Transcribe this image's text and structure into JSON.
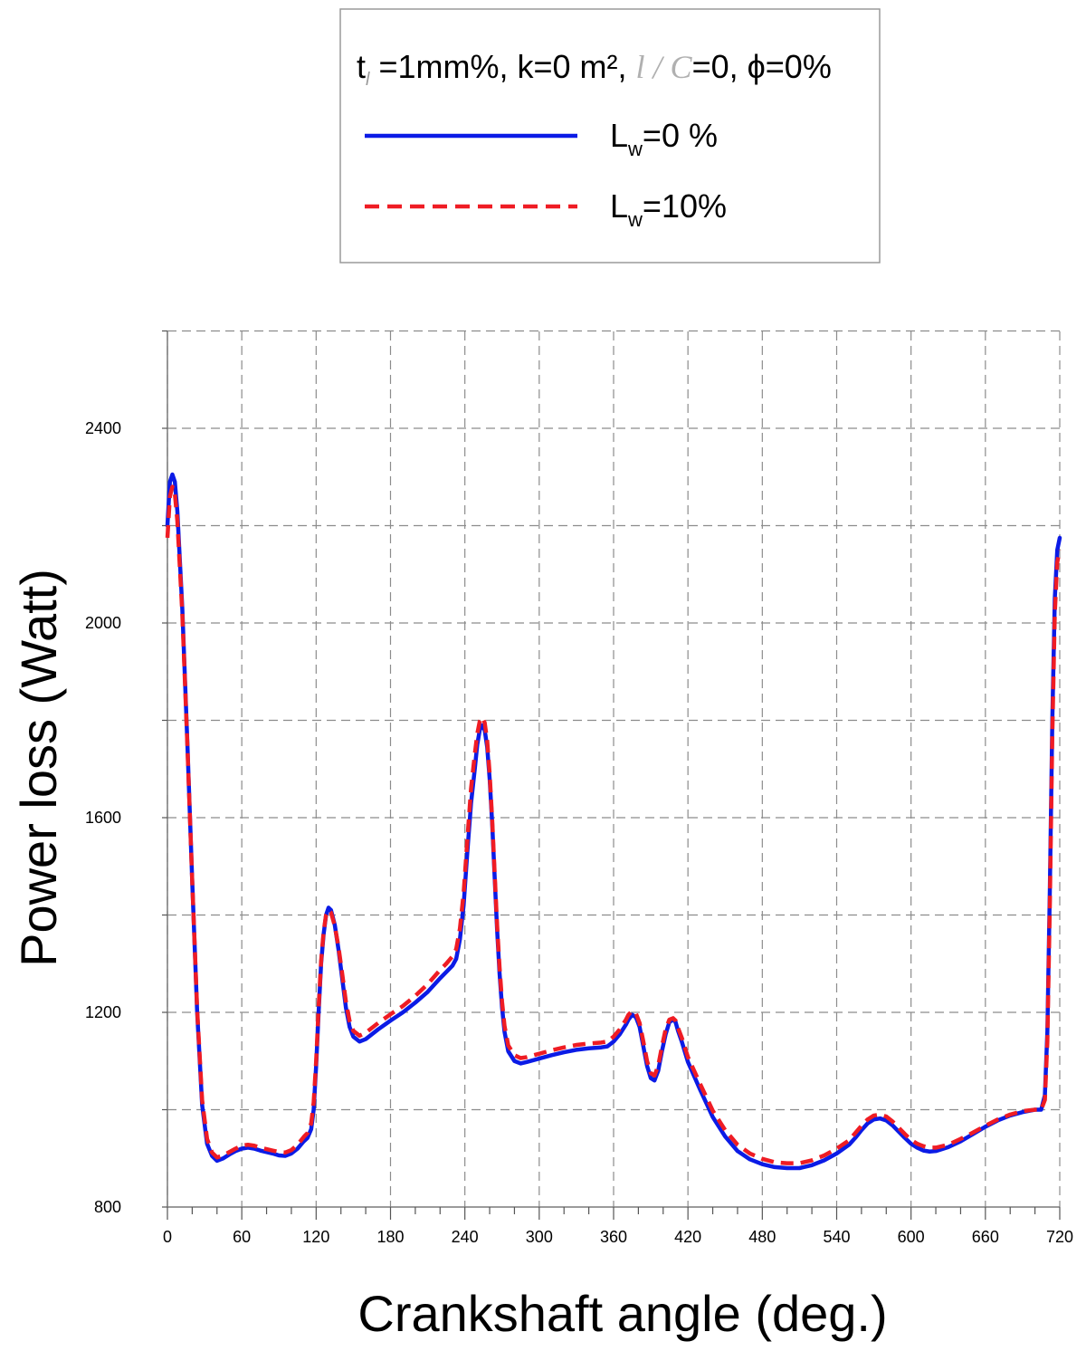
{
  "chart_data": {
    "type": "line",
    "xlabel": "Crankshaft angle (deg.)",
    "ylabel": "Power loss  (Watt)",
    "xlim": [
      0,
      720
    ],
    "ylim": [
      800,
      2600
    ],
    "x_ticks": [
      "0",
      "60",
      "120",
      "180",
      "240",
      "300",
      "360",
      "420",
      "480",
      "540",
      "600",
      "660",
      "720"
    ],
    "y_ticks": [
      "800",
      "1200",
      "1600",
      "2000",
      "2400"
    ],
    "grid": true,
    "legend": {
      "position": "top",
      "title_parts": {
        "t": "t",
        "t_sub": "l",
        "t_rest": " =1mm%, k=0 m², ",
        "italic": "l / C",
        "rest": "=0, ϕ=0%"
      },
      "entries": [
        {
          "base": "L",
          "sub": "w",
          "rest": "=0 %"
        },
        {
          "base": "L",
          "sub": "w",
          "rest": "=10%"
        }
      ]
    },
    "series": [
      {
        "name": "Lw=0 %",
        "color": "#0b1be6",
        "style": "solid",
        "x": [
          0,
          2,
          4,
          6,
          8,
          12,
          16,
          20,
          24,
          28,
          32,
          36,
          40,
          45,
          50,
          55,
          60,
          65,
          70,
          75,
          80,
          85,
          90,
          95,
          100,
          105,
          110,
          113,
          116,
          118,
          120,
          122,
          124,
          126,
          128,
          130,
          132,
          135,
          138,
          141,
          144,
          147,
          150,
          155,
          160,
          170,
          180,
          190,
          200,
          210,
          220,
          225,
          230,
          233,
          236,
          239,
          242,
          245,
          248,
          250,
          252,
          254,
          256,
          258,
          260,
          262,
          264,
          266,
          268,
          270,
          272,
          275,
          280,
          285,
          290,
          300,
          310,
          320,
          330,
          340,
          350,
          355,
          360,
          365,
          370,
          372,
          375,
          378,
          381,
          384,
          387,
          390,
          393,
          396,
          399,
          402,
          405,
          408,
          410,
          412,
          415,
          420,
          430,
          440,
          450,
          460,
          470,
          480,
          490,
          500,
          510,
          520,
          530,
          540,
          550,
          555,
          560,
          565,
          570,
          575,
          580,
          585,
          590,
          595,
          600,
          605,
          610,
          615,
          620,
          630,
          640,
          650,
          660,
          670,
          680,
          690,
          700,
          705,
          708,
          710,
          712,
          714,
          716,
          718,
          720
        ],
        "y": [
          2200,
          2290,
          2305,
          2290,
          2230,
          2030,
          1760,
          1470,
          1200,
          1010,
          930,
          905,
          895,
          900,
          908,
          915,
          920,
          922,
          920,
          916,
          913,
          910,
          906,
          905,
          910,
          920,
          935,
          942,
          960,
          1000,
          1090,
          1200,
          1300,
          1360,
          1400,
          1415,
          1410,
          1380,
          1330,
          1270,
          1210,
          1170,
          1150,
          1140,
          1145,
          1165,
          1183,
          1200,
          1220,
          1242,
          1270,
          1283,
          1296,
          1310,
          1350,
          1420,
          1530,
          1630,
          1700,
          1750,
          1780,
          1790,
          1780,
          1745,
          1680,
          1590,
          1480,
          1370,
          1280,
          1210,
          1160,
          1120,
          1100,
          1095,
          1098,
          1105,
          1112,
          1118,
          1123,
          1126,
          1128,
          1130,
          1140,
          1155,
          1175,
          1185,
          1195,
          1190,
          1170,
          1130,
          1090,
          1065,
          1060,
          1080,
          1120,
          1155,
          1180,
          1185,
          1180,
          1162,
          1140,
          1098,
          1040,
          985,
          945,
          915,
          898,
          888,
          882,
          880,
          880,
          886,
          896,
          910,
          928,
          942,
          958,
          972,
          980,
          982,
          978,
          968,
          955,
          942,
          930,
          922,
          916,
          914,
          915,
          923,
          935,
          950,
          965,
          978,
          988,
          995,
          1000,
          1000,
          1030,
          1160,
          1450,
          1800,
          2050,
          2150,
          2175
        ]
      },
      {
        "name": "Lw=10%",
        "color": "#ef1c24",
        "style": "dashed",
        "x": [
          0,
          2,
          4,
          6,
          8,
          12,
          16,
          20,
          24,
          28,
          32,
          36,
          40,
          45,
          50,
          55,
          60,
          65,
          70,
          75,
          80,
          85,
          90,
          95,
          100,
          105,
          110,
          113,
          116,
          118,
          120,
          122,
          124,
          126,
          128,
          130,
          132,
          135,
          138,
          141,
          144,
          147,
          150,
          155,
          160,
          170,
          180,
          190,
          200,
          210,
          220,
          225,
          230,
          233,
          236,
          239,
          242,
          245,
          248,
          250,
          252,
          254,
          256,
          258,
          260,
          262,
          264,
          266,
          268,
          270,
          272,
          275,
          280,
          285,
          290,
          300,
          310,
          320,
          330,
          340,
          350,
          355,
          360,
          365,
          370,
          372,
          375,
          378,
          381,
          384,
          387,
          390,
          393,
          396,
          399,
          402,
          405,
          408,
          410,
          412,
          415,
          420,
          430,
          440,
          450,
          460,
          470,
          480,
          490,
          500,
          510,
          520,
          530,
          540,
          550,
          555,
          560,
          565,
          570,
          575,
          580,
          585,
          590,
          595,
          600,
          605,
          610,
          615,
          620,
          630,
          640,
          650,
          660,
          670,
          680,
          690,
          700,
          705,
          708,
          710,
          712,
          714,
          716,
          718,
          720
        ],
        "y": [
          2175,
          2260,
          2280,
          2265,
          2210,
          2020,
          1755,
          1470,
          1205,
          1020,
          940,
          912,
          902,
          906,
          913,
          920,
          926,
          928,
          926,
          922,
          919,
          916,
          913,
          912,
          917,
          928,
          944,
          952,
          972,
          1015,
          1100,
          1210,
          1305,
          1365,
          1400,
          1410,
          1405,
          1378,
          1335,
          1280,
          1222,
          1182,
          1162,
          1152,
          1158,
          1178,
          1196,
          1213,
          1234,
          1258,
          1287,
          1300,
          1315,
          1330,
          1372,
          1445,
          1555,
          1660,
          1730,
          1772,
          1798,
          1806,
          1795,
          1758,
          1690,
          1598,
          1488,
          1380,
          1292,
          1222,
          1172,
          1132,
          1112,
          1106,
          1108,
          1115,
          1122,
          1128,
          1133,
          1136,
          1138,
          1140,
          1150,
          1165,
          1185,
          1195,
          1203,
          1198,
          1178,
          1140,
          1100,
          1075,
          1070,
          1090,
          1130,
          1165,
          1185,
          1188,
          1183,
          1168,
          1148,
          1108,
          1052,
          998,
          958,
          928,
          910,
          899,
          892,
          890,
          890,
          896,
          906,
          920,
          937,
          952,
          967,
          980,
          988,
          990,
          986,
          976,
          963,
          950,
          938,
          930,
          925,
          922,
          922,
          928,
          940,
          953,
          967,
          980,
          990,
          997,
          1000,
          1000,
          1020,
          1140,
          1420,
          1770,
          2020,
          2125,
          2150
        ]
      }
    ]
  }
}
